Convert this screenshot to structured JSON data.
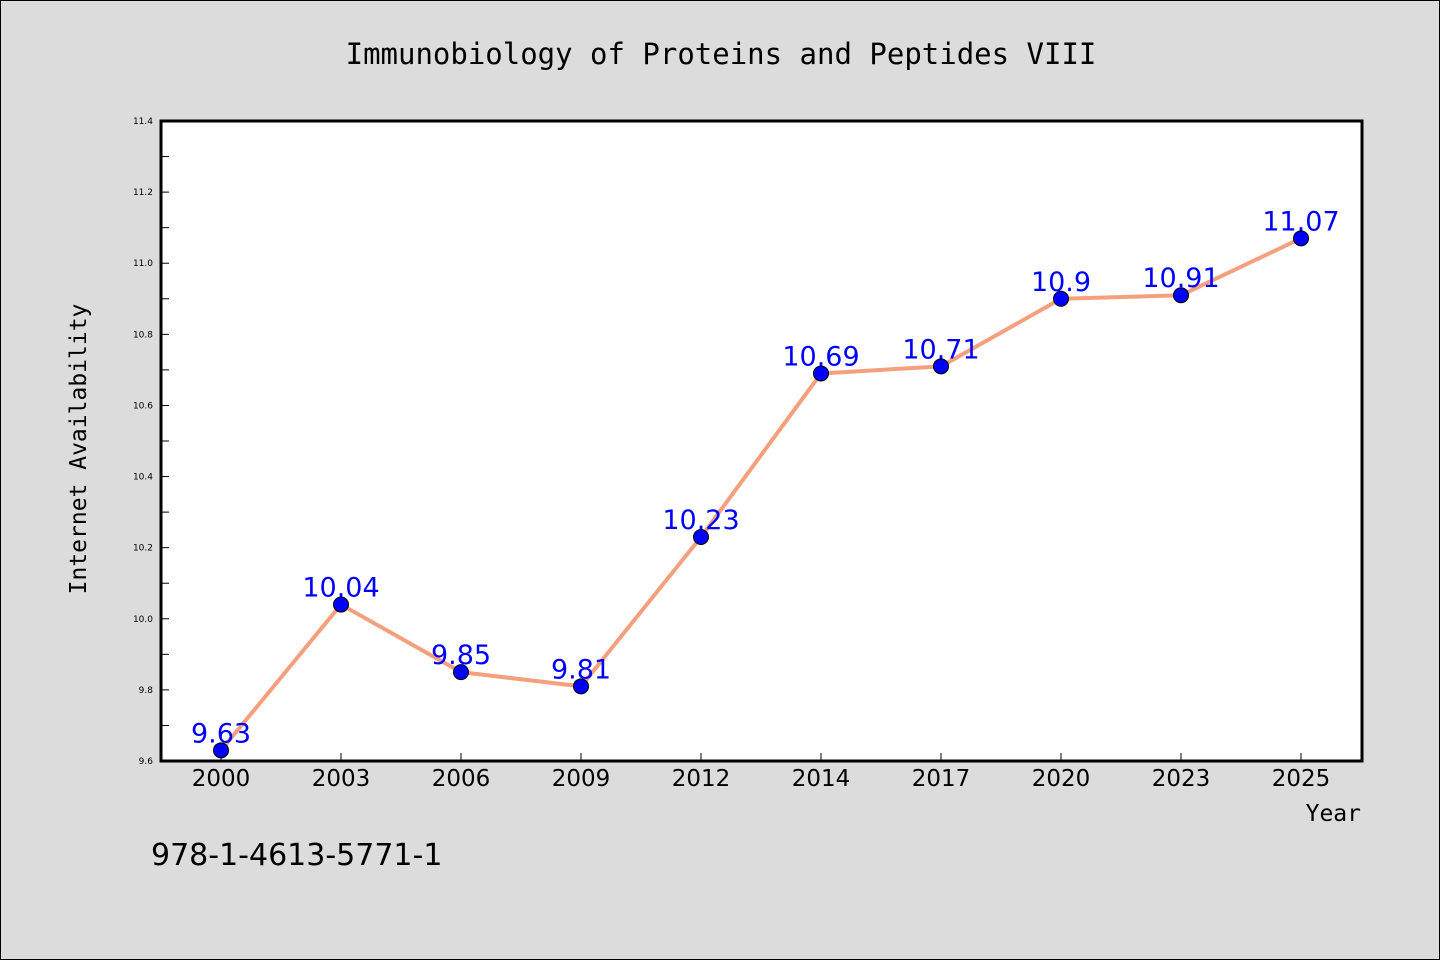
{
  "chart_data": {
    "type": "line",
    "title": "Immunobiology of Proteins and Peptides VIII",
    "xlabel": "Year",
    "ylabel": "Internet Availability",
    "categories": [
      "2000",
      "2003",
      "2006",
      "2009",
      "2012",
      "2014",
      "2017",
      "2020",
      "2023",
      "2025"
    ],
    "series": [
      {
        "values": [
          9.63,
          10.04,
          9.85,
          9.81,
          10.23,
          10.69,
          10.71,
          10.9,
          10.91,
          11.07
        ],
        "point_labels": [
          "9.63",
          "10.04",
          "9.85",
          "9.81",
          "10.23",
          "10.69",
          "10.71",
          "10.9",
          "10.91",
          "11.07"
        ]
      }
    ],
    "ylim": [
      9.6,
      11.4
    ],
    "yticks": [
      "9.6",
      "9.8",
      "10.0",
      "10.2",
      "10.4",
      "10.6",
      "10.8",
      "11.0",
      "11.2",
      "11.4"
    ],
    "grid": false,
    "colors": {
      "line": "#f4a07e",
      "marker": "#0000ff",
      "label": "#0000ff",
      "background": "#dcdcdc",
      "plot_background": "#ffffff"
    }
  },
  "footer_text": "978-1-4613-5771-1"
}
